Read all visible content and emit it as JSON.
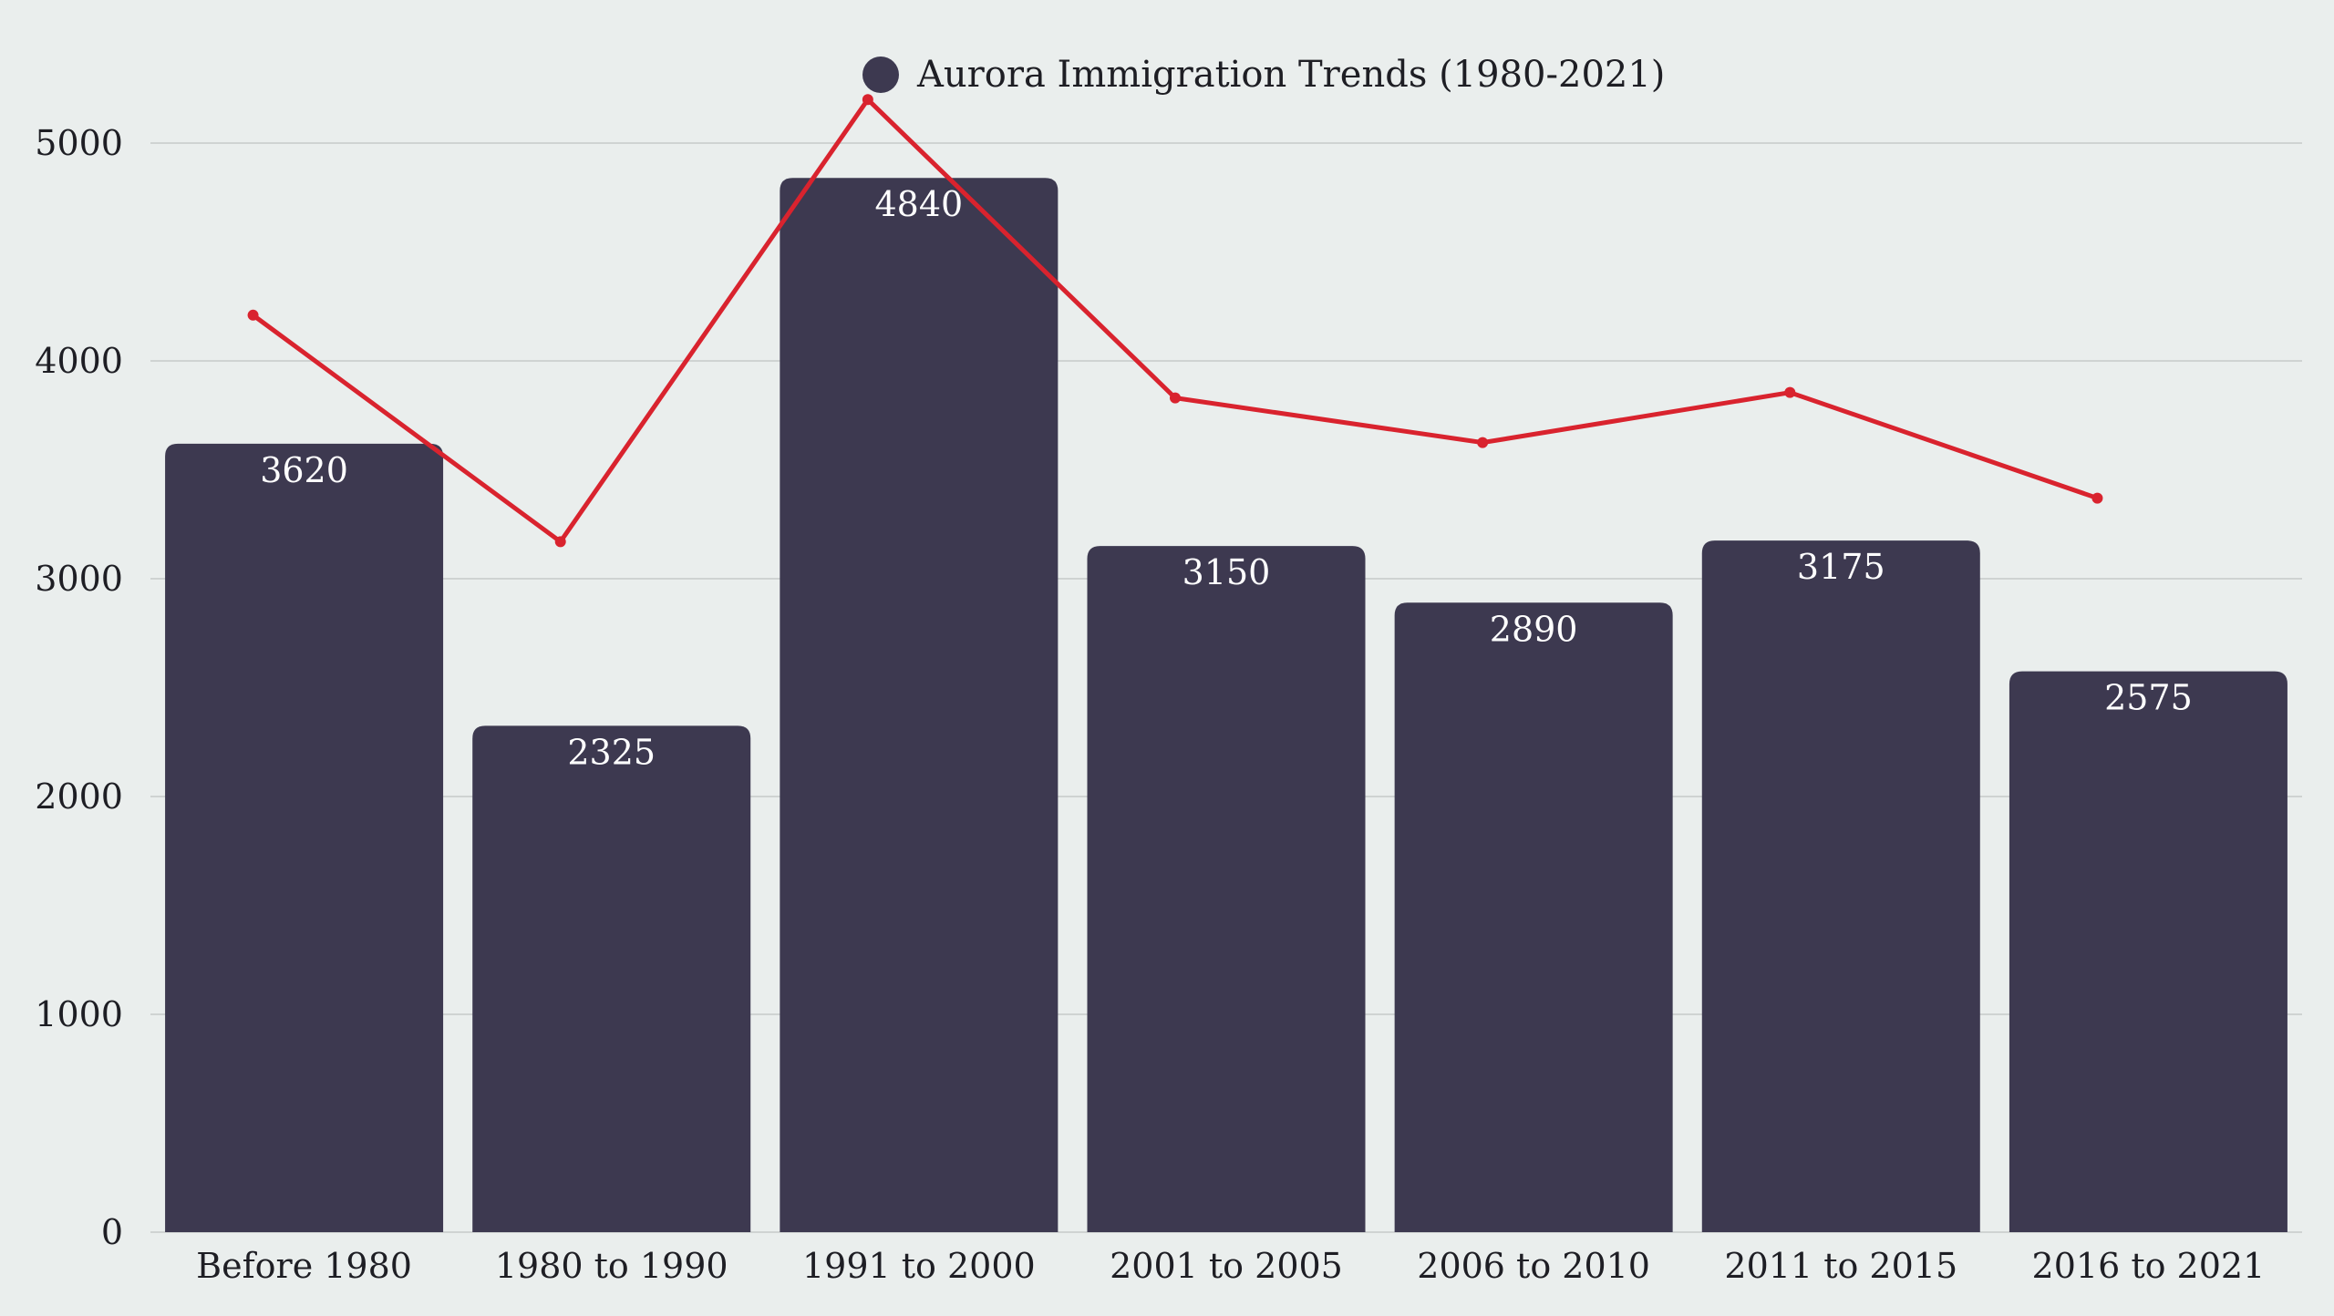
{
  "chart_data": {
    "type": "bar",
    "title": "",
    "xlabel": "",
    "ylabel": "",
    "ylim": [
      0,
      5000
    ],
    "yticks": [
      0,
      1000,
      2000,
      3000,
      4000,
      5000
    ],
    "grid": true,
    "legend_position": "top-center",
    "categories": [
      "Before 1980",
      "1980 to 1990",
      "1991 to 2000",
      "2001 to 2005",
      "2006 to 2010",
      "2011 to 2015",
      "2016 to 2021"
    ],
    "series": [
      {
        "name": "Aurora Immigration Trends (1980-2021)",
        "type": "bar",
        "color": "#3d3950",
        "values": [
          3620,
          2325,
          4840,
          3150,
          2890,
          3175,
          2575
        ],
        "data_labels": true
      },
      {
        "type": "line",
        "color": "#d9232e",
        "values": [
          4210,
          3170,
          5200,
          3830,
          3625,
          3855,
          3370
        ]
      }
    ]
  }
}
